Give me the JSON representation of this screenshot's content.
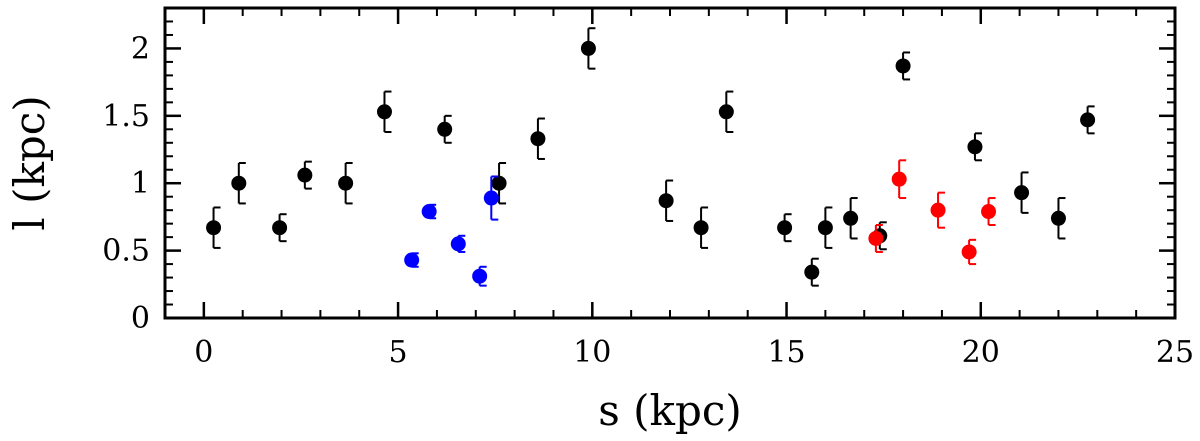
{
  "chart_data": {
    "type": "scatter",
    "title": "",
    "xlabel": "s (kpc)",
    "ylabel": "l (kpc)",
    "xlim": [
      -1,
      25
    ],
    "ylim": [
      0,
      2.3
    ],
    "x_major_ticks": [
      0,
      5,
      10,
      15,
      20,
      25
    ],
    "y_major_ticks": [
      0,
      0.5,
      1,
      1.5,
      2
    ],
    "x_tick_labels": [
      "0",
      "5",
      "10",
      "15",
      "20",
      "25"
    ],
    "y_tick_labels": [
      "0",
      "0.5",
      "1",
      "1.5",
      "2"
    ],
    "x_minor_step": 1,
    "y_minor_step": 0.1,
    "grid": false,
    "series": [
      {
        "name": "black",
        "color": "#000000",
        "points": [
          {
            "x": 0.25,
            "y": 0.67,
            "err": 0.15
          },
          {
            "x": 0.9,
            "y": 1.0,
            "err": 0.15
          },
          {
            "x": 1.95,
            "y": 0.67,
            "err": 0.1
          },
          {
            "x": 2.6,
            "y": 1.06,
            "err": 0.1
          },
          {
            "x": 3.65,
            "y": 1.0,
            "err": 0.15
          },
          {
            "x": 4.65,
            "y": 1.53,
            "err": 0.15
          },
          {
            "x": 6.2,
            "y": 1.4,
            "err": 0.1
          },
          {
            "x": 7.6,
            "y": 1.0,
            "err": 0.15
          },
          {
            "x": 8.6,
            "y": 1.33,
            "err": 0.15
          },
          {
            "x": 9.9,
            "y": 2.0,
            "err": 0.15
          },
          {
            "x": 11.9,
            "y": 0.87,
            "err": 0.15
          },
          {
            "x": 12.8,
            "y": 0.67,
            "err": 0.15
          },
          {
            "x": 13.45,
            "y": 1.53,
            "err": 0.15
          },
          {
            "x": 14.95,
            "y": 0.67,
            "err": 0.1
          },
          {
            "x": 15.65,
            "y": 0.34,
            "err": 0.1
          },
          {
            "x": 16.0,
            "y": 0.67,
            "err": 0.15
          },
          {
            "x": 16.65,
            "y": 0.74,
            "err": 0.15
          },
          {
            "x": 17.4,
            "y": 0.61,
            "err": 0.1
          },
          {
            "x": 18.0,
            "y": 1.87,
            "err": 0.1
          },
          {
            "x": 19.85,
            "y": 1.27,
            "err": 0.1
          },
          {
            "x": 21.05,
            "y": 0.93,
            "err": 0.15
          },
          {
            "x": 22.0,
            "y": 0.74,
            "err": 0.15
          },
          {
            "x": 22.75,
            "y": 1.47,
            "err": 0.1
          }
        ]
      },
      {
        "name": "blue",
        "color": "#0000ff",
        "points": [
          {
            "x": 5.35,
            "y": 0.43,
            "err": 0.05
          },
          {
            "x": 5.8,
            "y": 0.79,
            "err": 0.05
          },
          {
            "x": 6.55,
            "y": 0.55,
            "err": 0.06
          },
          {
            "x": 7.1,
            "y": 0.31,
            "err": 0.07
          },
          {
            "x": 7.4,
            "y": 0.89,
            "err": 0.16
          }
        ]
      },
      {
        "name": "red",
        "color": "#ff0000",
        "points": [
          {
            "x": 17.3,
            "y": 0.59,
            "err": 0.1
          },
          {
            "x": 17.9,
            "y": 1.03,
            "err": 0.14
          },
          {
            "x": 18.9,
            "y": 0.8,
            "err": 0.13
          },
          {
            "x": 19.7,
            "y": 0.49,
            "err": 0.09
          },
          {
            "x": 20.2,
            "y": 0.79,
            "err": 0.1
          }
        ]
      }
    ]
  }
}
